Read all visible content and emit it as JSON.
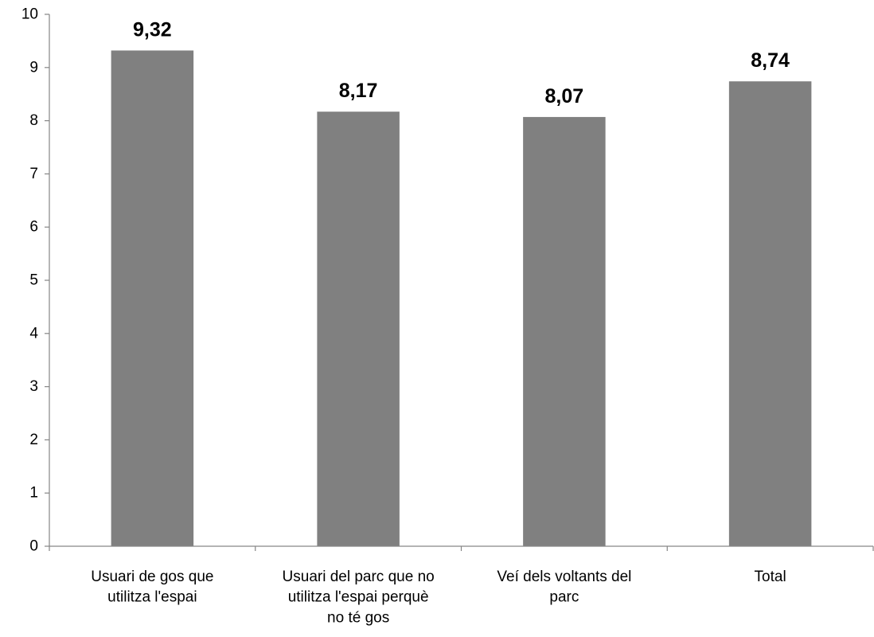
{
  "chart_data": {
    "type": "bar",
    "categories": [
      [
        "Usuari de gos que",
        "utilitza l'espai"
      ],
      [
        "Usuari del parc que no",
        "utilitza l'espai perquè",
        "no té gos"
      ],
      [
        "Veí dels voltants del",
        "parc"
      ],
      [
        "Total"
      ]
    ],
    "values": [
      9.32,
      8.17,
      8.07,
      8.74
    ],
    "data_labels": [
      "9,32",
      "8,17",
      "8,07",
      "8,74"
    ],
    "ylim": [
      0,
      10
    ],
    "yticks": [
      0,
      1,
      2,
      3,
      4,
      5,
      6,
      7,
      8,
      9,
      10
    ],
    "title": "",
    "xlabel": "",
    "ylabel": "",
    "grid": false,
    "legend": "none",
    "bar_color": "#808080",
    "axis_color": "#868686"
  }
}
